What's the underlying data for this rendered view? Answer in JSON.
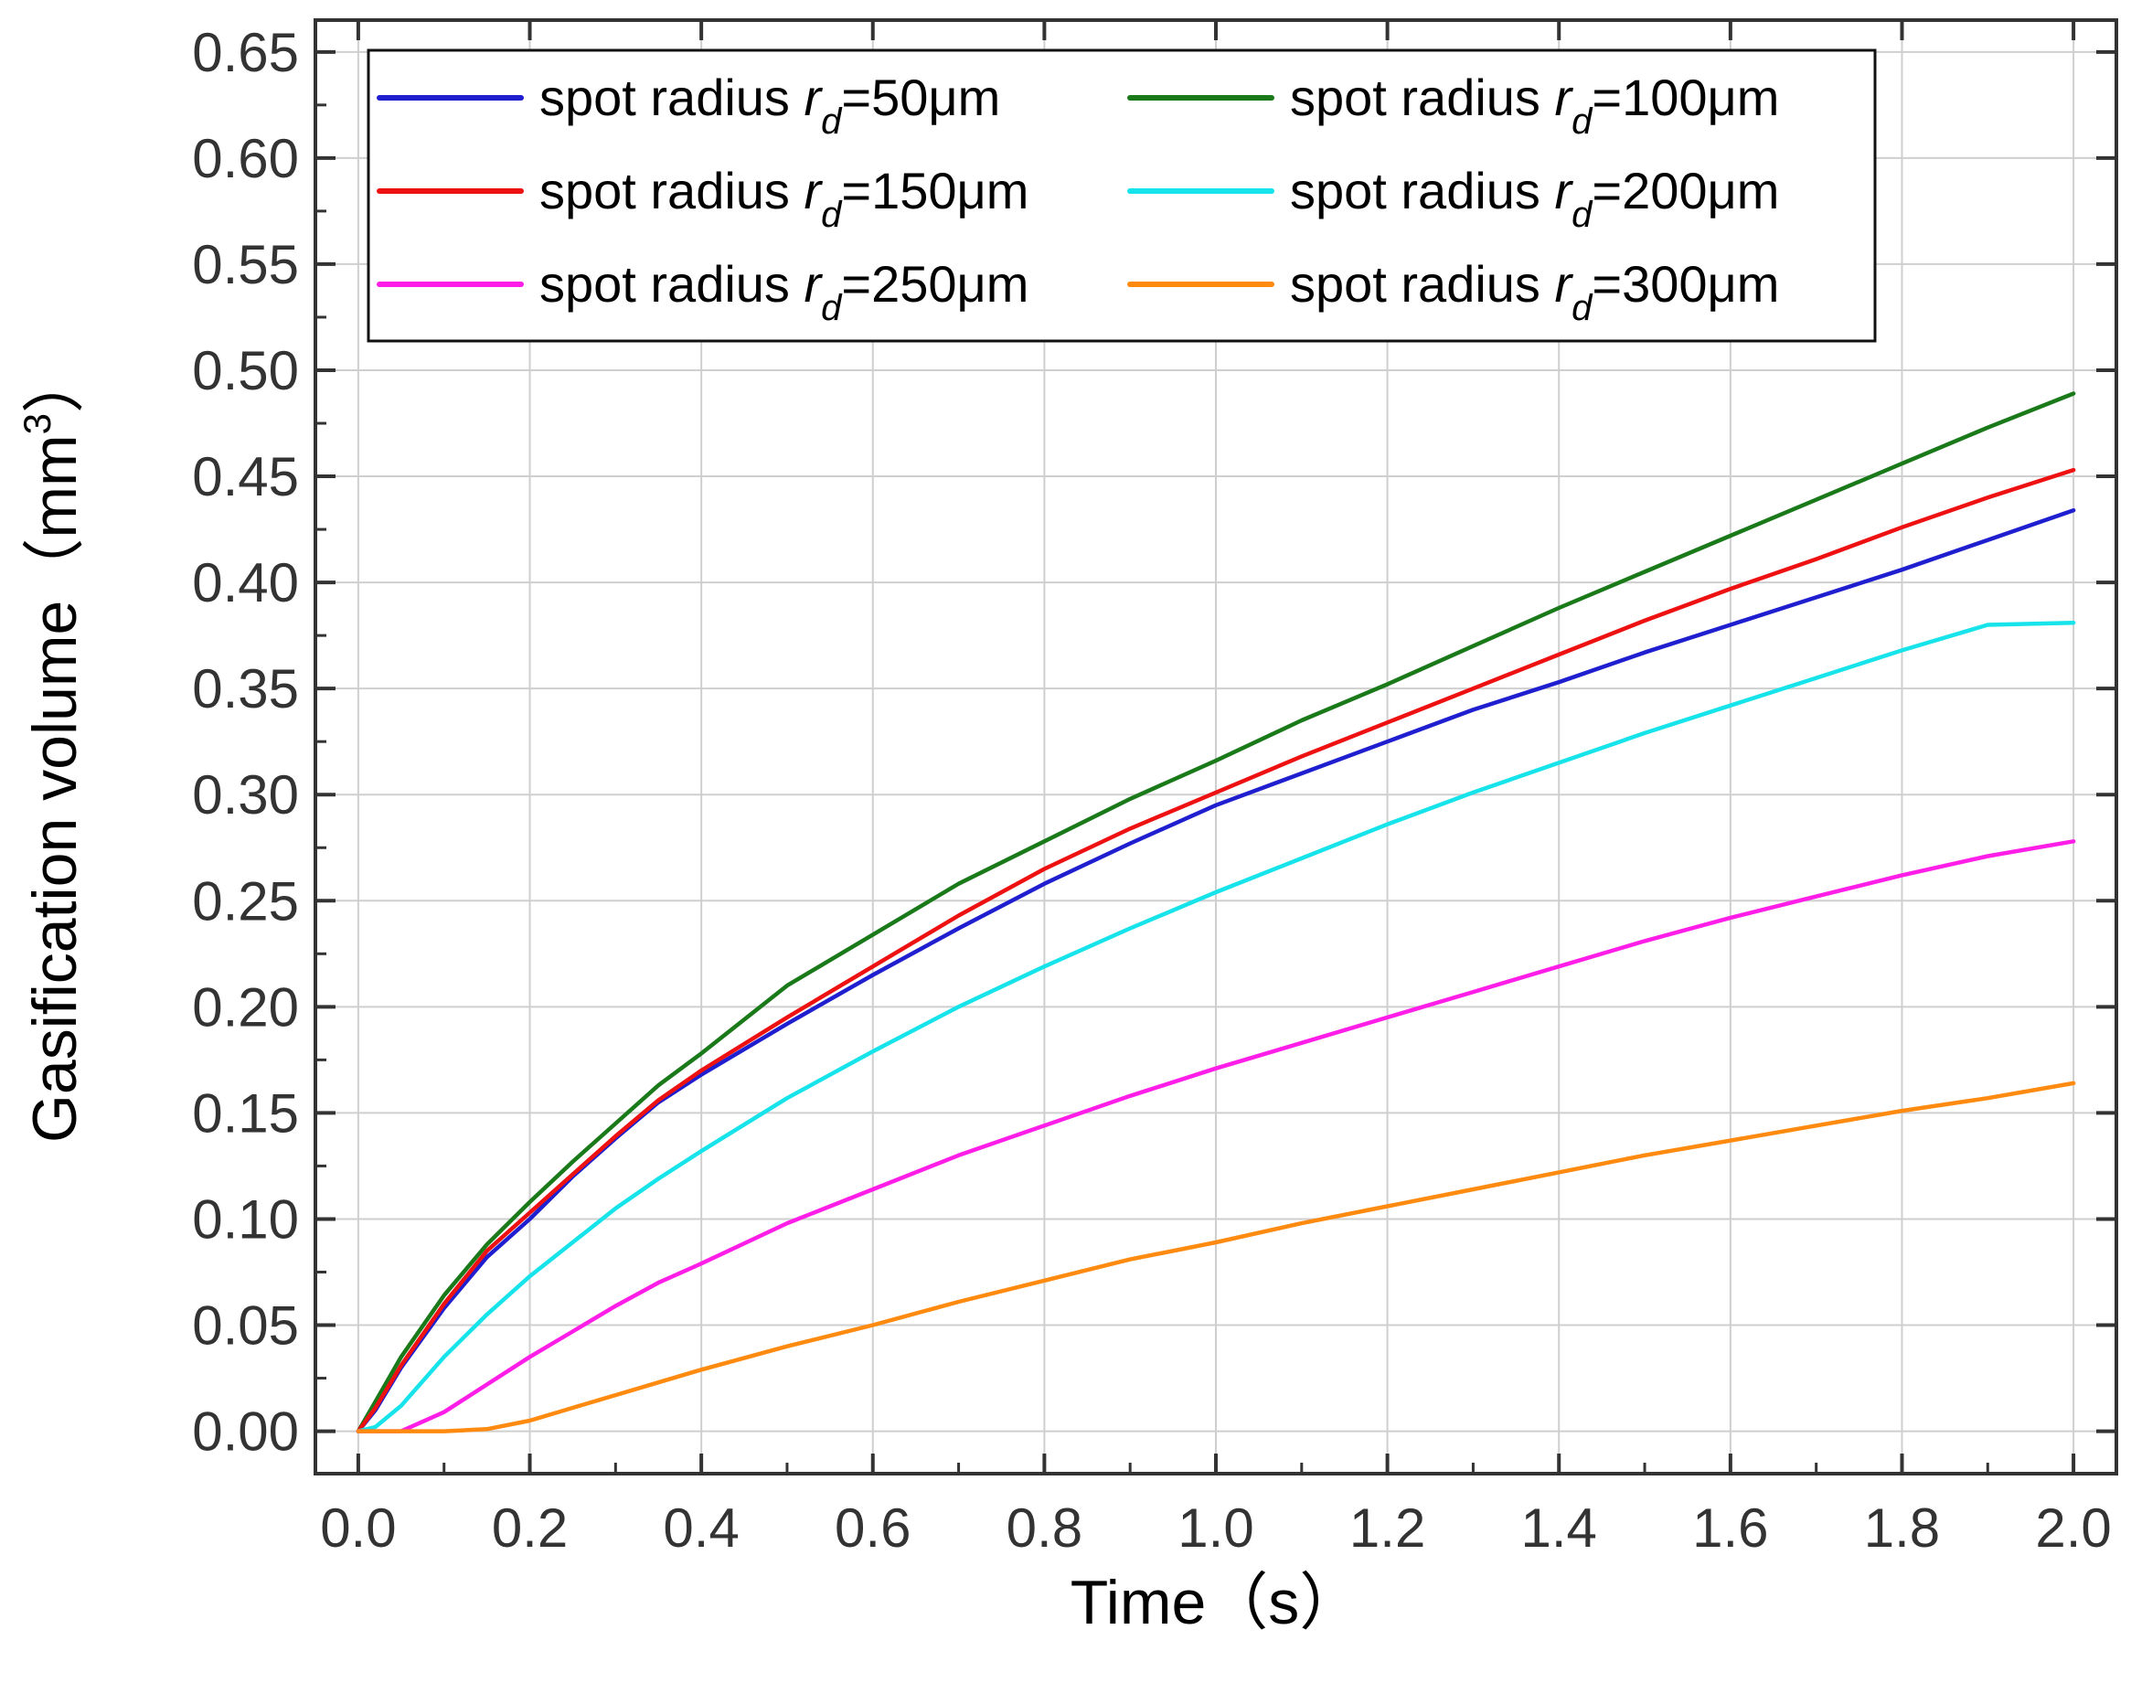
{
  "chart_data": {
    "type": "line",
    "title": "",
    "xlabel": "Time（s）",
    "ylabel_main": "Gasification volume（mm",
    "ylabel_sup": "3",
    "ylabel_close": "）",
    "xlim": [
      -0.05,
      2.05
    ],
    "ylim": [
      -0.02,
      0.665
    ],
    "x_ticks": [
      0.0,
      0.2,
      0.4,
      0.6,
      0.8,
      1.0,
      1.2,
      1.4,
      1.6,
      1.8,
      2.0
    ],
    "x_tick_labels": [
      "0.0",
      "0.2",
      "0.4",
      "0.6",
      "0.8",
      "1.0",
      "1.2",
      "1.4",
      "1.6",
      "1.8",
      "2.0"
    ],
    "y_ticks": [
      0.0,
      0.05,
      0.1,
      0.15,
      0.2,
      0.25,
      0.3,
      0.35,
      0.4,
      0.45,
      0.5,
      0.55,
      0.6,
      0.65
    ],
    "y_tick_labels": [
      "0.00",
      "0.05",
      "0.10",
      "0.15",
      "0.20",
      "0.25",
      "0.30",
      "0.35",
      "0.40",
      "0.45",
      "0.50",
      "0.55",
      "0.60",
      "0.65"
    ],
    "grid": true,
    "legend_position": "top-left",
    "x": [
      0.0,
      0.02,
      0.05,
      0.1,
      0.15,
      0.2,
      0.25,
      0.3,
      0.35,
      0.4,
      0.5,
      0.6,
      0.7,
      0.8,
      0.9,
      1.0,
      1.1,
      1.2,
      1.3,
      1.4,
      1.5,
      1.6,
      1.7,
      1.8,
      1.9,
      2.0
    ],
    "series": [
      {
        "name_prefix": "spot radius ",
        "name_var": "r",
        "name_sub": "d",
        "name_suffix": "=50μm",
        "color": "#1f1fd0",
        "values": [
          0.0,
          0.01,
          0.03,
          0.058,
          0.082,
          0.1,
          0.12,
          0.138,
          0.155,
          0.168,
          0.192,
          0.215,
          0.237,
          0.258,
          0.277,
          0.295,
          0.31,
          0.325,
          0.34,
          0.353,
          0.367,
          0.38,
          0.393,
          0.406,
          0.42,
          0.434
        ]
      },
      {
        "name_prefix": "spot radius ",
        "name_var": "r",
        "name_sub": "d",
        "name_suffix": "=100μm",
        "color": "#1a7a1a",
        "values": [
          0.0,
          0.014,
          0.035,
          0.064,
          0.088,
          0.108,
          0.127,
          0.145,
          0.163,
          0.178,
          0.21,
          0.234,
          0.258,
          0.278,
          0.298,
          0.316,
          0.335,
          0.352,
          0.37,
          0.388,
          0.405,
          0.422,
          0.439,
          0.456,
          0.473,
          0.489
        ]
      },
      {
        "name_prefix": "spot radius ",
        "name_var": "r",
        "name_sub": "d",
        "name_suffix": "=150μm",
        "color": "#ee1111",
        "values": [
          0.0,
          0.011,
          0.031,
          0.06,
          0.085,
          0.103,
          0.121,
          0.139,
          0.156,
          0.17,
          0.195,
          0.219,
          0.243,
          0.265,
          0.284,
          0.301,
          0.318,
          0.334,
          0.35,
          0.366,
          0.382,
          0.397,
          0.411,
          0.426,
          0.44,
          0.453
        ]
      },
      {
        "name_prefix": "spot radius ",
        "name_var": "r",
        "name_sub": "d",
        "name_suffix": "=200μm",
        "color": "#16e3ea",
        "values": [
          0.0,
          0.002,
          0.012,
          0.035,
          0.055,
          0.073,
          0.089,
          0.105,
          0.119,
          0.132,
          0.157,
          0.179,
          0.2,
          0.219,
          0.237,
          0.254,
          0.27,
          0.286,
          0.301,
          0.315,
          0.329,
          0.342,
          0.355,
          0.368,
          0.38,
          0.381
        ]
      },
      {
        "name_prefix": "spot radius ",
        "name_var": "r",
        "name_sub": "d",
        "name_suffix": "=250μm",
        "color": "#ff1ee8",
        "values": [
          0.0,
          0.0,
          0.0,
          0.009,
          0.022,
          0.035,
          0.047,
          0.059,
          0.07,
          0.079,
          0.098,
          0.114,
          0.13,
          0.144,
          0.158,
          0.171,
          0.183,
          0.195,
          0.207,
          0.219,
          0.231,
          0.242,
          0.252,
          0.262,
          0.271,
          0.278
        ]
      },
      {
        "name_prefix": "spot radius ",
        "name_var": "r",
        "name_sub": "d",
        "name_suffix": "=300μm",
        "color": "#ff8a10",
        "values": [
          0.0,
          0.0,
          0.0,
          0.0,
          0.001,
          0.005,
          0.011,
          0.017,
          0.023,
          0.029,
          0.04,
          0.05,
          0.061,
          0.071,
          0.081,
          0.089,
          0.098,
          0.106,
          0.114,
          0.122,
          0.13,
          0.137,
          0.144,
          0.151,
          0.157,
          0.164
        ]
      }
    ]
  }
}
